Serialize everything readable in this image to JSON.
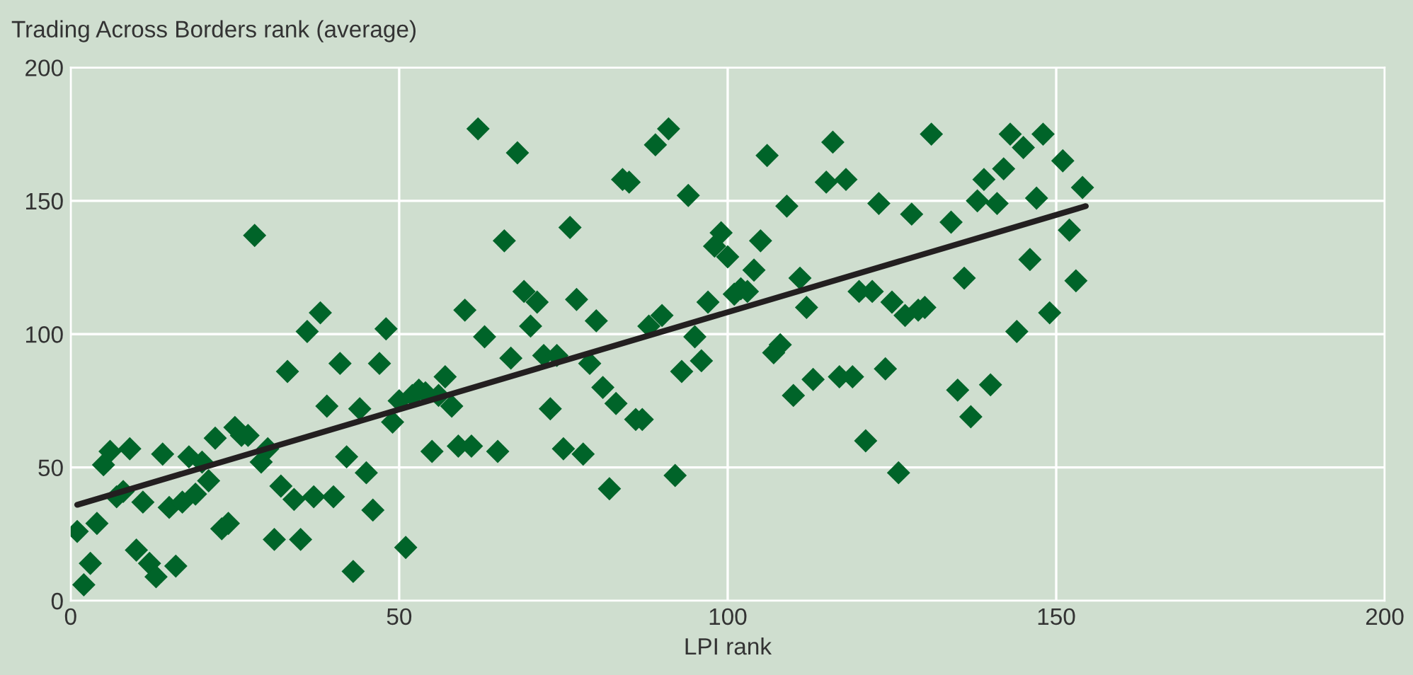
{
  "chart_data": {
    "type": "scatter",
    "ylabel": "Trading Across Borders rank (average)",
    "xlabel": "LPI rank",
    "xlim": [
      0,
      200
    ],
    "ylim": [
      0,
      200
    ],
    "xticks": [
      0,
      50,
      100,
      150,
      200
    ],
    "yticks": [
      0,
      50,
      100,
      150,
      200
    ],
    "grid": true,
    "series": [
      {
        "marker": "diamond",
        "color": "#006429",
        "x": [
          1,
          2,
          3,
          4,
          5,
          6,
          7,
          8,
          9,
          10,
          11,
          12,
          13,
          14,
          15,
          16,
          17,
          18,
          19,
          20,
          21,
          22,
          23,
          24,
          25,
          26,
          27,
          28,
          29,
          30,
          31,
          32,
          33,
          34,
          35,
          36,
          37,
          38,
          39,
          40,
          41,
          42,
          43,
          44,
          45,
          46,
          47,
          48,
          49,
          50,
          51,
          52,
          53,
          54,
          55,
          56,
          57,
          58,
          59,
          60,
          61,
          62,
          63,
          65,
          66,
          67,
          68,
          69,
          70,
          71,
          72,
          73,
          74,
          75,
          76,
          77,
          78,
          79,
          80,
          81,
          82,
          83,
          84,
          85,
          86,
          87,
          88,
          89,
          90,
          91,
          92,
          93,
          94,
          95,
          96,
          97,
          98,
          99,
          100,
          101,
          102,
          103,
          104,
          105,
          106,
          107,
          108,
          109,
          110,
          111,
          112,
          113,
          115,
          116,
          117,
          118,
          119,
          120,
          121,
          122,
          123,
          124,
          125,
          126,
          127,
          128,
          129,
          130,
          131,
          134,
          135,
          136,
          137,
          138,
          139,
          140,
          141,
          142,
          143,
          144,
          145,
          146,
          147,
          148,
          149,
          151,
          152,
          153,
          154
        ],
        "values": [
          26,
          6,
          14,
          29,
          51,
          56,
          39,
          41,
          57,
          19,
          37,
          14,
          9,
          55,
          35,
          13,
          37,
          54,
          40,
          52,
          45,
          61,
          27,
          29,
          65,
          62,
          62,
          137,
          52,
          57,
          23,
          43,
          86,
          38,
          23,
          101,
          39,
          108,
          73,
          39,
          89,
          54,
          11,
          72,
          48,
          34,
          89,
          102,
          67,
          75,
          20,
          77,
          79,
          78,
          56,
          77,
          84,
          73,
          58,
          109,
          58,
          177,
          99,
          56,
          135,
          91,
          168,
          116,
          103,
          112,
          92,
          72,
          92,
          57,
          140,
          113,
          55,
          89,
          105,
          80,
          42,
          74,
          158,
          157,
          68,
          68,
          103,
          171,
          107,
          177,
          47,
          86,
          152,
          99,
          90,
          112,
          133,
          138,
          129,
          115,
          117,
          116,
          124,
          135,
          167,
          93,
          96,
          148,
          77,
          121,
          110,
          83,
          157,
          172,
          84,
          158,
          84,
          116,
          60,
          116,
          149,
          87,
          112,
          48,
          107,
          145,
          109,
          110,
          175,
          142,
          79,
          121,
          69,
          150,
          158,
          81,
          149,
          162,
          175,
          101,
          170,
          128,
          151,
          175,
          108,
          165,
          139,
          120,
          155
        ]
      },
      {
        "type": "line",
        "marker": "none",
        "color": "#231f20",
        "x": [
          1,
          154.5
        ],
        "values": [
          36,
          148
        ]
      }
    ]
  }
}
